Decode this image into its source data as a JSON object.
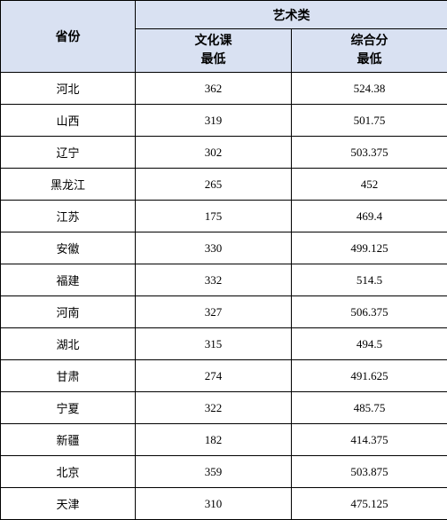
{
  "table": {
    "header": {
      "province": "省份",
      "group": "艺术类",
      "culture_line1": "文化课",
      "culture_line2": "最低",
      "composite_line1": "综合分",
      "composite_line2": "最低"
    },
    "rows": [
      {
        "province": "河北",
        "culture": "362",
        "composite": "524.38"
      },
      {
        "province": "山西",
        "culture": "319",
        "composite": "501.75"
      },
      {
        "province": "辽宁",
        "culture": "302",
        "composite": "503.375"
      },
      {
        "province": "黑龙江",
        "culture": "265",
        "composite": "452"
      },
      {
        "province": "江苏",
        "culture": "175",
        "composite": "469.4"
      },
      {
        "province": "安徽",
        "culture": "330",
        "composite": "499.125"
      },
      {
        "province": "福建",
        "culture": "332",
        "composite": "514.5"
      },
      {
        "province": "河南",
        "culture": "327",
        "composite": "506.375"
      },
      {
        "province": "湖北",
        "culture": "315",
        "composite": "494.5"
      },
      {
        "province": "甘肃",
        "culture": "274",
        "composite": "491.625"
      },
      {
        "province": "宁夏",
        "culture": "322",
        "composite": "485.75"
      },
      {
        "province": "新疆",
        "culture": "182",
        "composite": "414.375"
      },
      {
        "province": "北京",
        "culture": "359",
        "composite": "503.875"
      },
      {
        "province": "天津",
        "culture": "310",
        "composite": "475.125"
      }
    ],
    "colors": {
      "header_bg": "#d9e1f2",
      "border": "#000000",
      "text": "#000000",
      "row_bg": "#ffffff"
    },
    "font": {
      "header_size_pt": 11,
      "body_size_pt": 10,
      "family": "SimSun"
    }
  }
}
